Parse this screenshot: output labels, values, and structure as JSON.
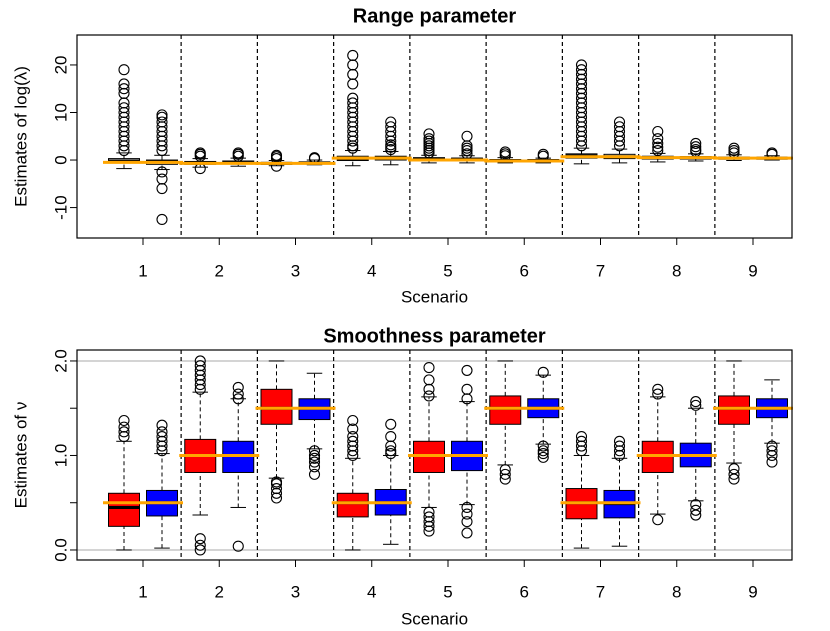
{
  "chart_data": [
    {
      "type": "boxplot",
      "title": "Range parameter",
      "xlabel": "Scenario",
      "ylabel": "Estimates of log(λ)",
      "categories": [
        "1",
        "2",
        "3",
        "4",
        "5",
        "6",
        "7",
        "8",
        "9"
      ],
      "ylim": [
        -16.4,
        26.3
      ],
      "yticks": [
        -10,
        0,
        10,
        20
      ],
      "true_color": "orange",
      "true_values": [
        -0.5,
        -0.7,
        -0.7,
        0.4,
        0,
        -0.2,
        0.7,
        0.5,
        0.4
      ],
      "series": [
        {
          "color": "white",
          "boxes": [
            {
              "whislo": -1.8,
              "q1": -0.6,
              "med": -0.2,
              "q3": 0.3,
              "whishi": 1.5,
              "fliers": [
                2,
                3,
                4,
                5,
                6,
                7,
                8,
                9,
                10,
                11,
                12,
                14,
                15,
                16,
                19
              ]
            },
            {
              "whislo": -1.5,
              "q1": -0.9,
              "med": -0.6,
              "q3": -0.3,
              "whishi": 0.3,
              "fliers": [
                -1.8,
                0.8,
                1.2,
                1.5
              ]
            },
            {
              "whislo": -1.2,
              "q1": -0.9,
              "med": -0.7,
              "q3": -0.5,
              "whishi": -0.1,
              "fliers": [
                -1.3,
                0.3,
                0.7,
                1
              ]
            },
            {
              "whislo": -1.2,
              "q1": -0.1,
              "med": 0.3,
              "q3": 0.8,
              "whishi": 2,
              "fliers": [
                2.5,
                3,
                4,
                5,
                6,
                7,
                8,
                9,
                10,
                11,
                12,
                13,
                16,
                18,
                20,
                22
              ]
            },
            {
              "whislo": -0.6,
              "q1": -0.1,
              "med": 0.2,
              "q3": 0.5,
              "whishi": 1,
              "fliers": [
                1.5,
                2,
                2.5,
                3,
                3.5,
                4,
                4.5,
                5.5
              ]
            },
            {
              "whislo": -0.6,
              "q1": -0.3,
              "med": -0.1,
              "q3": 0.1,
              "whishi": 0.5,
              "fliers": [
                0.9,
                1.3,
                1.7
              ]
            },
            {
              "whislo": -0.8,
              "q1": 0.4,
              "med": 0.9,
              "q3": 1.3,
              "whishi": 2.5,
              "fliers": [
                3,
                4,
                5,
                6,
                7,
                8,
                9,
                10,
                11,
                12,
                13,
                14,
                15,
                16,
                17,
                18,
                19,
                20
              ]
            },
            {
              "whislo": -0.4,
              "q1": 0.2,
              "med": 0.5,
              "q3": 0.8,
              "whishi": 1.4,
              "fliers": [
                2,
                2.7,
                3.5,
                4.5,
                6
              ]
            },
            {
              "whislo": -0.1,
              "q1": 0.2,
              "med": 0.4,
              "q3": 0.6,
              "whishi": 1.1,
              "fliers": [
                1.5,
                2,
                2.5
              ]
            }
          ]
        },
        {
          "color": "white",
          "boxes": [
            {
              "whislo": -2,
              "q1": -0.9,
              "med": -0.4,
              "q3": 0,
              "whishi": 1,
              "fliers": [
                2,
                3,
                4,
                5,
                6,
                7,
                8,
                9,
                9.5,
                -2.5,
                -4,
                -6,
                -12.5
              ]
            },
            {
              "whislo": -1.3,
              "q1": -0.8,
              "med": -0.5,
              "q3": -0.2,
              "whishi": 0.4,
              "fliers": [
                0.8,
                1.2,
                1.5
              ]
            },
            {
              "whislo": -1,
              "q1": -0.8,
              "med": -0.6,
              "q3": -0.4,
              "whishi": 0,
              "fliers": [
                0.3,
                0.5
              ]
            },
            {
              "whislo": -1,
              "q1": 0,
              "med": 0.4,
              "q3": 0.8,
              "whishi": 1.8,
              "fliers": [
                2.2,
                2.7,
                3.2,
                4,
                5,
                6,
                7,
                8
              ]
            },
            {
              "whislo": -0.6,
              "q1": -0.1,
              "med": 0.2,
              "q3": 0.4,
              "whishi": 0.9,
              "fliers": [
                1.3,
                2,
                2.5,
                3,
                5
              ]
            },
            {
              "whislo": -0.6,
              "q1": -0.3,
              "med": -0.1,
              "q3": 0.1,
              "whishi": 0.4,
              "fliers": [
                0.8,
                1.2
              ]
            },
            {
              "whislo": -0.6,
              "q1": 0.3,
              "med": 0.7,
              "q3": 1.2,
              "whishi": 2.3,
              "fliers": [
                3,
                4,
                5,
                6,
                7,
                8
              ]
            },
            {
              "whislo": -0.2,
              "q1": 0.2,
              "med": 0.5,
              "q3": 0.7,
              "whishi": 1.3,
              "fliers": [
                1.8,
                2.2,
                2.8,
                3.5
              ]
            },
            {
              "whislo": 0,
              "q1": 0.2,
              "med": 0.4,
              "q3": 0.5,
              "whishi": 0.9,
              "fliers": [
                1.2,
                1.5
              ]
            }
          ]
        }
      ]
    },
    {
      "type": "boxplot",
      "title": "Smoothness parameter",
      "xlabel": "Scenario",
      "ylabel": "Estimates of ν",
      "categories": [
        "1",
        "2",
        "3",
        "4",
        "5",
        "6",
        "7",
        "8",
        "9"
      ],
      "ylim": [
        -0.106,
        2.116
      ],
      "yticks": [
        {
          "value": 0,
          "label": "0.0"
        },
        {
          "value": 1,
          "label": "1.0"
        },
        {
          "value": 2,
          "label": "2.0"
        }
      ],
      "yminor": [
        0.5,
        1.5
      ],
      "hlines": [
        0,
        2
      ],
      "hline_color": "#bbbbbb",
      "true_color": "orange",
      "true_values": [
        0.5,
        1,
        1.5,
        0.5,
        1,
        1.5,
        0.5,
        1,
        1.5
      ],
      "series": [
        {
          "color": "#ff0000",
          "boxes": [
            {
              "whislo": 0,
              "q1": 0.25,
              "med": 0.45,
              "q3": 0.6,
              "whishi": 1.15,
              "fliers": [
                1.2,
                1.25,
                1.3,
                1.37
              ]
            },
            {
              "whislo": 0.37,
              "q1": 0.82,
              "med": 1,
              "q3": 1.17,
              "whishi": 1.67,
              "fliers": [
                0,
                0.05,
                0.12,
                1.7,
                1.75,
                1.8,
                1.85,
                1.9,
                1.95,
                2
              ]
            },
            {
              "whislo": 0.76,
              "q1": 1.33,
              "med": 1.5,
              "q3": 1.7,
              "whishi": 2,
              "fliers": [
                0.55,
                0.6,
                0.65,
                0.7,
                0.72
              ]
            },
            {
              "whislo": 0,
              "q1": 0.35,
              "med": 0.5,
              "q3": 0.6,
              "whishi": 0.97,
              "fliers": [
                1,
                1.05,
                1.1,
                1.15,
                1.2,
                1.28,
                1.37
              ]
            },
            {
              "whislo": 0.45,
              "q1": 0.82,
              "med": 1,
              "q3": 1.15,
              "whishi": 1.62,
              "fliers": [
                0.2,
                0.25,
                0.3,
                0.35,
                0.4,
                1.63,
                1.7,
                1.8,
                1.93
              ]
            },
            {
              "whislo": 0.9,
              "q1": 1.33,
              "med": 1.5,
              "q3": 1.63,
              "whishi": 2,
              "fliers": [
                0.75,
                0.8,
                0.85
              ]
            },
            {
              "whislo": 0.02,
              "q1": 0.33,
              "med": 0.5,
              "q3": 0.65,
              "whishi": 1,
              "fliers": [
                1.05,
                1.1,
                1.15,
                1.2
              ]
            },
            {
              "whislo": 0.38,
              "q1": 0.82,
              "med": 1,
              "q3": 1.15,
              "whishi": 1.62,
              "fliers": [
                0.32,
                1.65,
                1.7
              ]
            },
            {
              "whislo": 0.92,
              "q1": 1.33,
              "med": 1.5,
              "q3": 1.63,
              "whishi": 2,
              "fliers": [
                0.75,
                0.8,
                0.86
              ]
            }
          ]
        },
        {
          "color": "#0000ff",
          "boxes": [
            {
              "whislo": 0.02,
              "q1": 0.36,
              "med": 0.5,
              "q3": 0.63,
              "whishi": 1.02,
              "fliers": [
                1.05,
                1.1,
                1.15,
                1.2,
                1.25,
                1.32
              ]
            },
            {
              "whislo": 0.45,
              "q1": 0.82,
              "med": 1,
              "q3": 1.15,
              "whishi": 1.6,
              "fliers": [
                0.04,
                1.6,
                1.65,
                1.72
              ]
            },
            {
              "whislo": 1.07,
              "q1": 1.38,
              "med": 1.5,
              "q3": 1.6,
              "whishi": 1.87,
              "fliers": [
                0.8,
                0.88,
                0.93,
                0.97,
                1,
                1.05
              ]
            },
            {
              "whislo": 0.06,
              "q1": 0.37,
              "med": 0.5,
              "q3": 0.64,
              "whishi": 1,
              "fliers": [
                1.02,
                1.05,
                1.1,
                1.2,
                1.33
              ]
            },
            {
              "whislo": 0.48,
              "q1": 0.84,
              "med": 1,
              "q3": 1.15,
              "whishi": 1.57,
              "fliers": [
                0.18,
                0.3,
                0.38,
                0.45,
                1.6,
                1.7,
                1.9
              ]
            },
            {
              "whislo": 1.12,
              "q1": 1.4,
              "med": 1.5,
              "q3": 1.6,
              "whishi": 1.85,
              "fliers": [
                0.98,
                1.02,
                1.05,
                1.1,
                1.88
              ]
            },
            {
              "whislo": 0.04,
              "q1": 0.34,
              "med": 0.49,
              "q3": 0.63,
              "whishi": 0.97,
              "fliers": [
                1,
                1.05,
                1.1,
                1.15
              ]
            },
            {
              "whislo": 0.52,
              "q1": 0.88,
              "med": 1,
              "q3": 1.13,
              "whishi": 1.5,
              "fliers": [
                0.37,
                0.42,
                0.48,
                1.53,
                1.57
              ]
            },
            {
              "whislo": 1.13,
              "q1": 1.4,
              "med": 1.5,
              "q3": 1.6,
              "whishi": 1.8,
              "fliers": [
                0.93,
                1,
                1.05,
                1.1
              ]
            }
          ]
        }
      ]
    }
  ]
}
